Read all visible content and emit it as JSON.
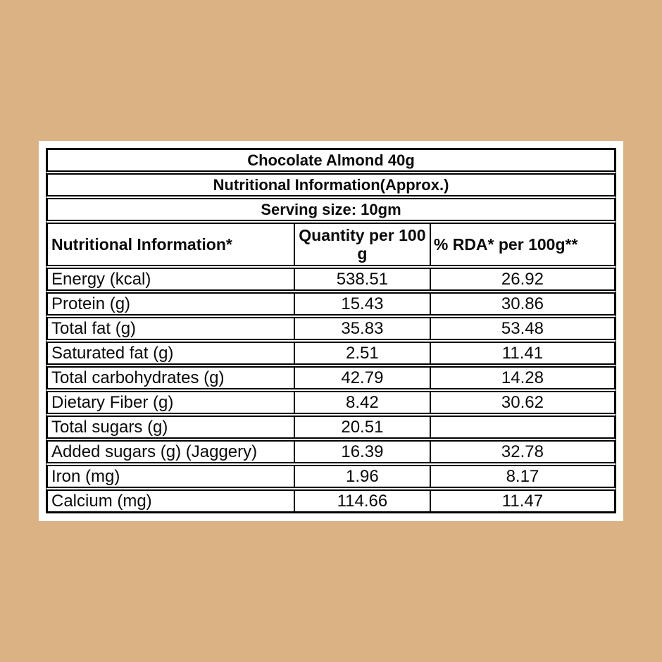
{
  "page": {
    "background_color": "#dbb283",
    "card_color": "#ffffff",
    "border_color": "#000000",
    "text_color": "#0a0a0a"
  },
  "table": {
    "title": "Chocolate Almond 40g",
    "subtitle": "Nutritional Information(Approx.)",
    "serving": "Serving size: 10gm",
    "columns": [
      "Nutritional Information*",
      "Quantity per 100 g",
      "% RDA* per 100g**"
    ],
    "rows": [
      {
        "label": "Energy (kcal)",
        "quantity": "538.51",
        "rda": "26.92"
      },
      {
        "label": "Protein (g)",
        "quantity": "15.43",
        "rda": "30.86"
      },
      {
        "label": "Total fat (g)",
        "quantity": "35.83",
        "rda": "53.48"
      },
      {
        "label": "Saturated fat (g)",
        "quantity": "2.51",
        "rda": "11.41"
      },
      {
        "label": "Total carbohydrates (g)",
        "quantity": "42.79",
        "rda": "14.28"
      },
      {
        "label": "Dietary Fiber (g)",
        "quantity": "8.42",
        "rda": "30.62"
      },
      {
        "label": "Total sugars (g)",
        "quantity": "20.51",
        "rda": ""
      },
      {
        "label": "Added sugars (g) (Jaggery)",
        "quantity": "16.39",
        "rda": "32.78"
      },
      {
        "label": "Iron (mg)",
        "quantity": "1.96",
        "rda": "8.17"
      },
      {
        "label": "Calcium (mg)",
        "quantity": "114.66",
        "rda": "11.47"
      }
    ]
  }
}
